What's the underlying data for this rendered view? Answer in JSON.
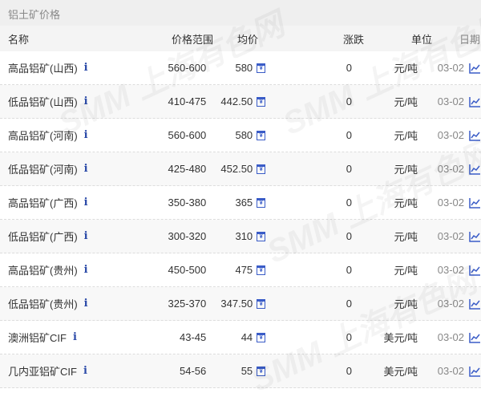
{
  "title": "铝土矿价格",
  "headers": {
    "name": "名称",
    "range": "价格范围",
    "avg": "均价",
    "change": "涨跌",
    "unit": "单位",
    "date": "日期"
  },
  "watermark": "SMM 上海有色网",
  "rows": [
    {
      "name": "高品铝矿(山西)",
      "range": "560-600",
      "avg": "580",
      "change": "0",
      "unit": "元/吨",
      "date": "03-02"
    },
    {
      "name": "低品铝矿(山西)",
      "range": "410-475",
      "avg": "442.50",
      "change": "0",
      "unit": "元/吨",
      "date": "03-02"
    },
    {
      "name": "高品铝矿(河南)",
      "range": "560-600",
      "avg": "580",
      "change": "0",
      "unit": "元/吨",
      "date": "03-02"
    },
    {
      "name": "低品铝矿(河南)",
      "range": "425-480",
      "avg": "452.50",
      "change": "0",
      "unit": "元/吨",
      "date": "03-02"
    },
    {
      "name": "高品铝矿(广西)",
      "range": "350-380",
      "avg": "365",
      "change": "0",
      "unit": "元/吨",
      "date": "03-02"
    },
    {
      "name": "低品铝矿(广西)",
      "range": "300-320",
      "avg": "310",
      "change": "0",
      "unit": "元/吨",
      "date": "03-02"
    },
    {
      "name": "高品铝矿(贵州)",
      "range": "450-500",
      "avg": "475",
      "change": "0",
      "unit": "元/吨",
      "date": "03-02"
    },
    {
      "name": "低品铝矿(贵州)",
      "range": "325-370",
      "avg": "347.50",
      "change": "0",
      "unit": "元/吨",
      "date": "03-02"
    },
    {
      "name": "澳洲铝矿CIF",
      "range": "43-45",
      "avg": "44",
      "change": "0",
      "unit": "美元/吨",
      "date": "03-02"
    },
    {
      "name": "几内亚铝矿CIF",
      "range": "54-56",
      "avg": "55",
      "change": "0",
      "unit": "美元/吨",
      "date": "03-02"
    }
  ],
  "icons": {
    "info": "info-icon",
    "calendar": "calendar-icon",
    "chart": "line-chart-icon"
  },
  "colors": {
    "accent": "#3a5cc7"
  }
}
